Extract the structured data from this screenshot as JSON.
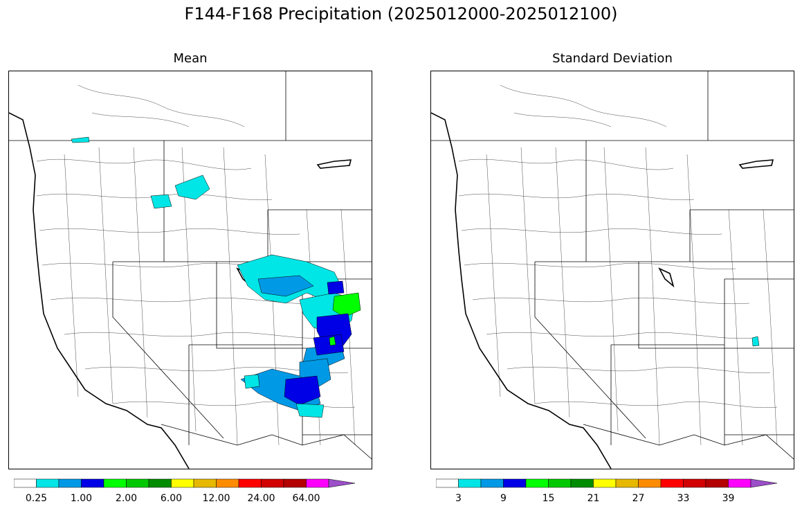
{
  "title": "F144-F168 Precipitation (2025012000-2025012100)",
  "panels": [
    {
      "id": "mean",
      "title": "Mean",
      "colorbar": {
        "colors": [
          "#ffffff",
          "#00e5e5",
          "#0099e6",
          "#0000e6",
          "#00ff00",
          "#00c800",
          "#008c00",
          "#ffff00",
          "#e6b800",
          "#ff8c00",
          "#ff0000",
          "#d20000",
          "#b40000",
          "#ff00ff",
          "#9b4fc8"
        ],
        "labels": [
          "0.25",
          "1.00",
          "2.00",
          "6.00",
          "12.00",
          "24.00",
          "64.00"
        ]
      }
    },
    {
      "id": "stddev",
      "title": "Standard Deviation",
      "colorbar": {
        "colors": [
          "#ffffff",
          "#00e5e5",
          "#0099e6",
          "#0000e6",
          "#00ff00",
          "#00c800",
          "#008c00",
          "#ffff00",
          "#e6b800",
          "#ff8c00",
          "#ff0000",
          "#d20000",
          "#b40000",
          "#ff00ff",
          "#9b4fc8"
        ],
        "labels": [
          "3",
          "9",
          "15",
          "21",
          "27",
          "33",
          "39"
        ]
      }
    }
  ]
}
